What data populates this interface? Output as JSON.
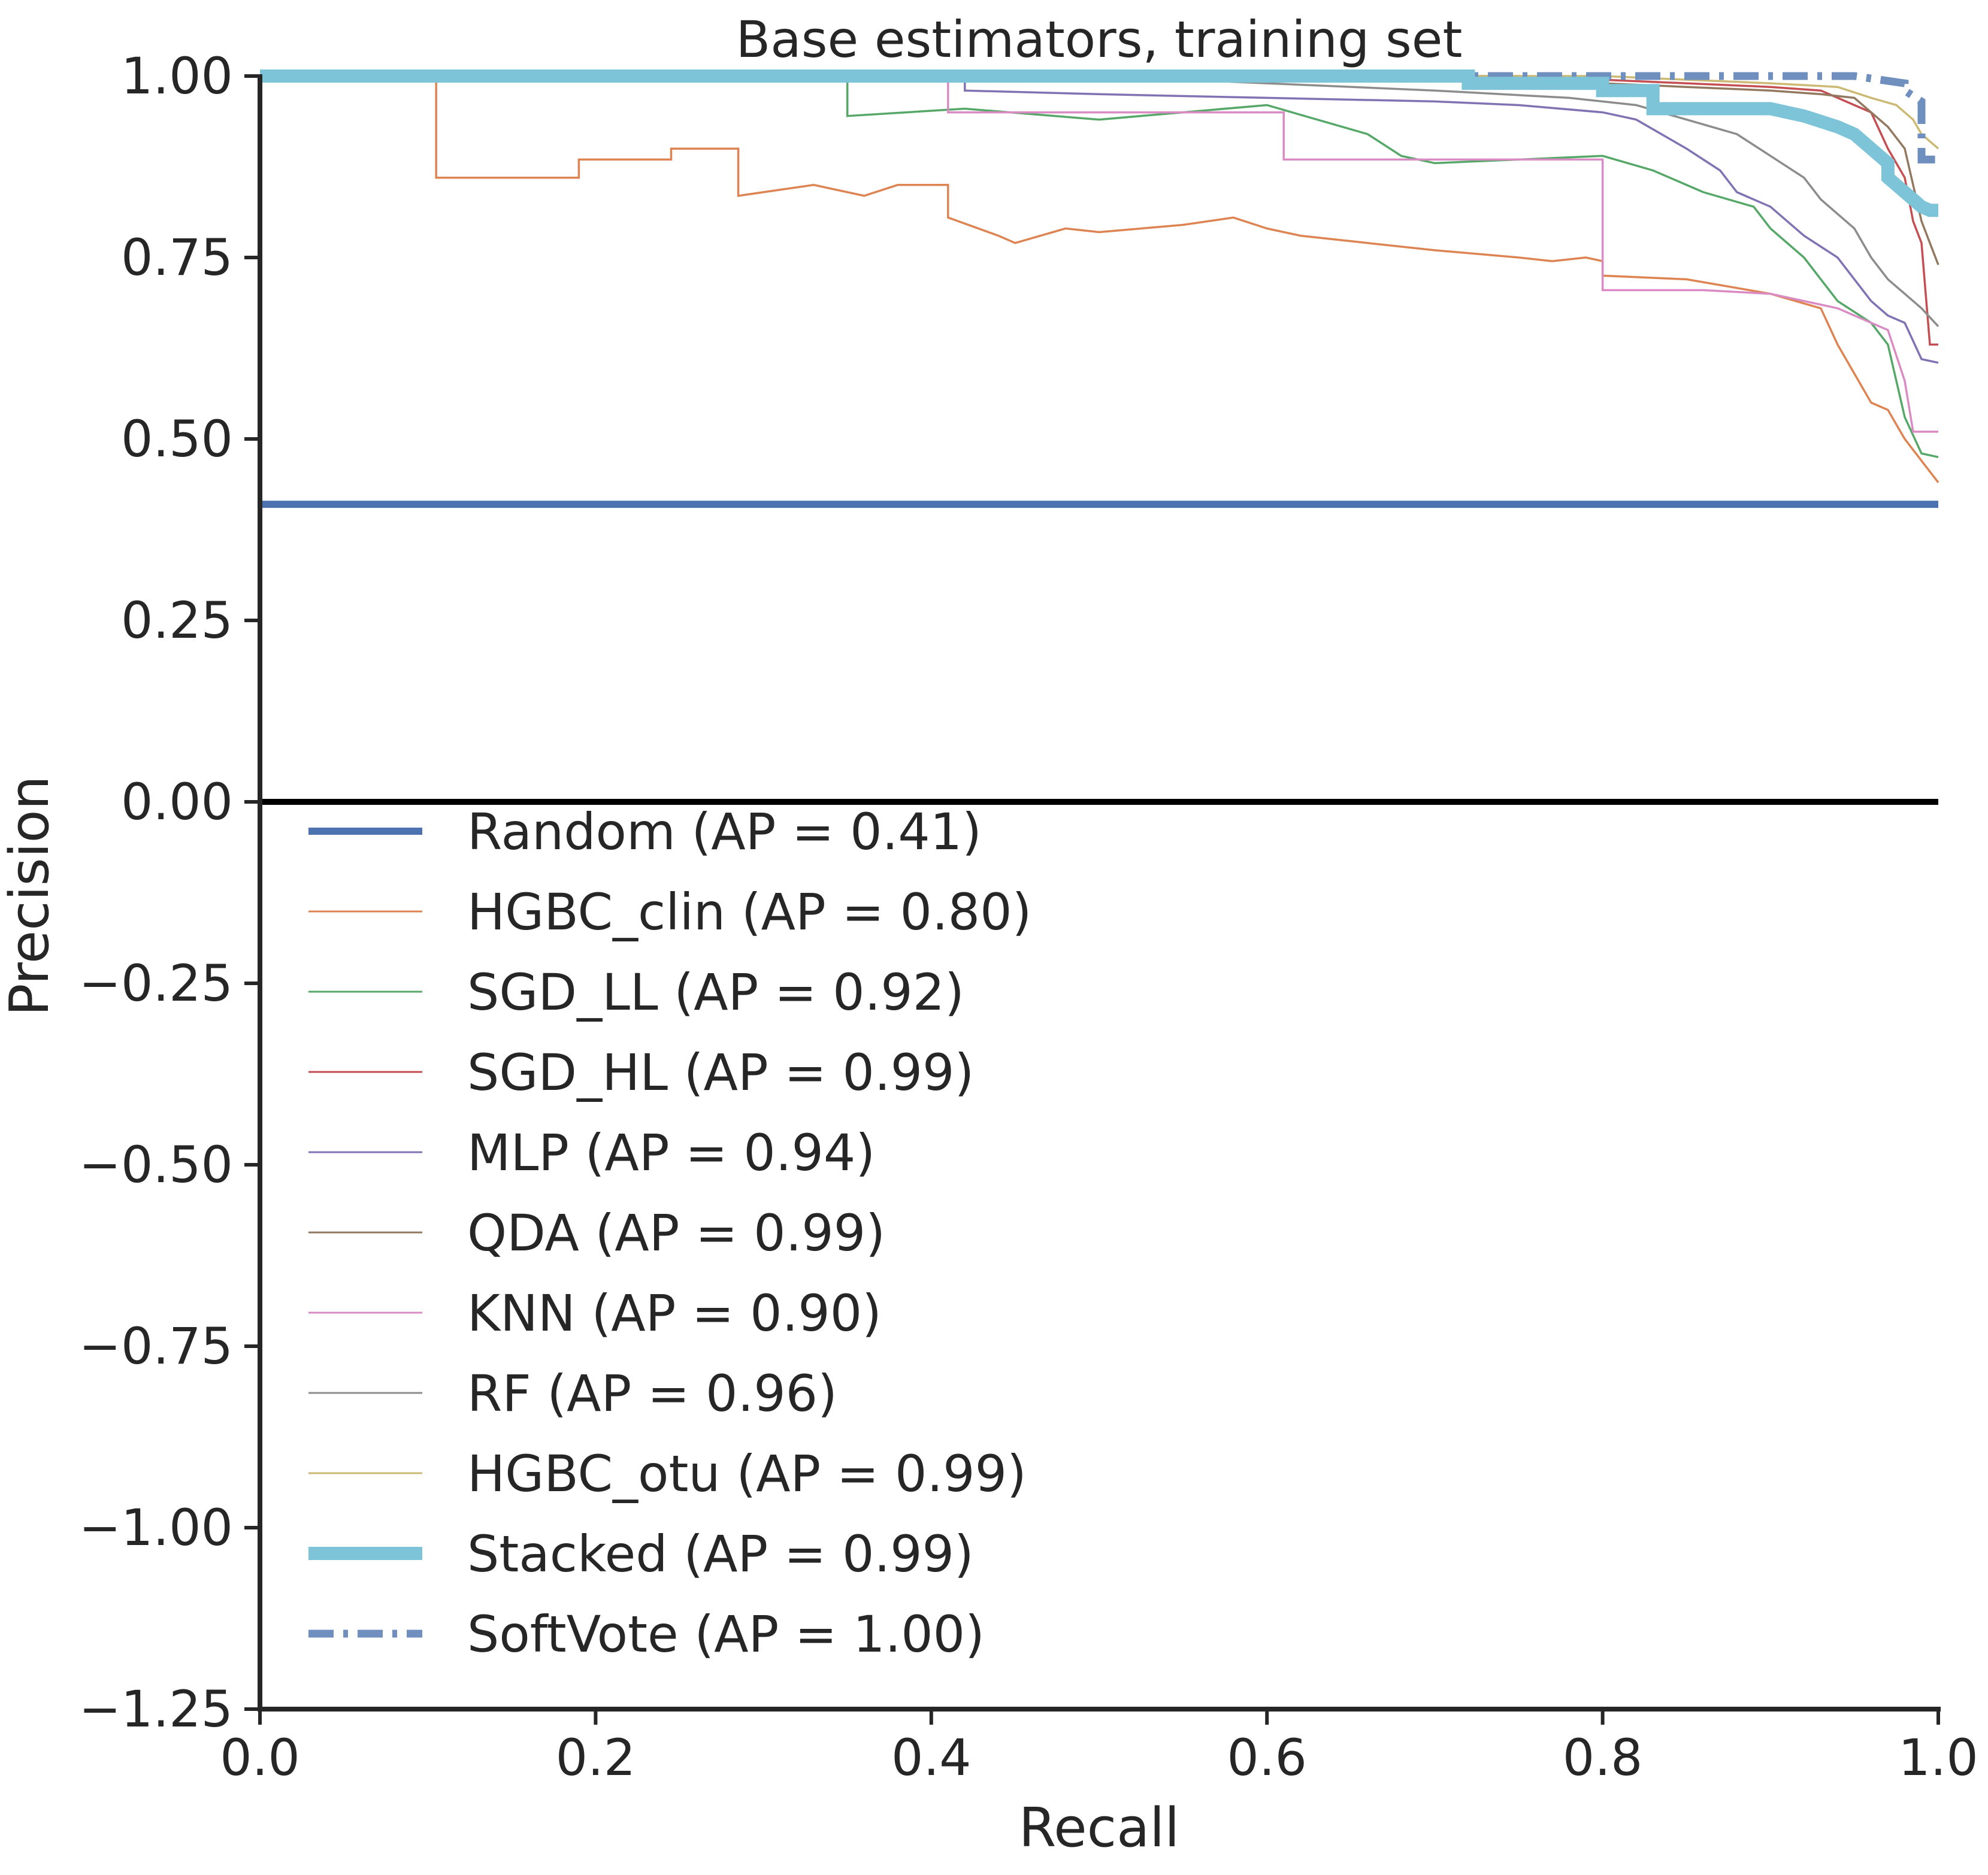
{
  "chart_data": {
    "type": "line",
    "title": "Base estimators, training set",
    "xlabel": "Recall",
    "ylabel": "Precision",
    "xlim": [
      0.0,
      1.0
    ],
    "ylim": [
      -1.25,
      1.0
    ],
    "xticks": [
      "0.0",
      "0.2",
      "0.4",
      "0.6",
      "0.8",
      "1.0"
    ],
    "yticks": [
      "1.00",
      "0.75",
      "0.50",
      "0.25",
      "0.00",
      "−0.25",
      "−0.50",
      "−0.75",
      "−1.00",
      "−1.25"
    ],
    "grid": false,
    "legend_position": "inside, below the 0.00 line, left",
    "series": [
      {
        "name": "Random (AP = 0.41)",
        "color": "#4c72b0",
        "style": "solid-thick",
        "x": [
          0.0,
          1.0
        ],
        "y": [
          0.41,
          0.41
        ]
      },
      {
        "name": "HGBC_clin (AP = 0.80)",
        "color": "#dd8452",
        "style": "solid",
        "x": [
          0.0,
          0.105,
          0.105,
          0.19,
          0.19,
          0.245,
          0.245,
          0.285,
          0.285,
          0.3,
          0.33,
          0.36,
          0.38,
          0.41,
          0.41,
          0.44,
          0.45,
          0.48,
          0.5,
          0.55,
          0.58,
          0.6,
          0.62,
          0.66,
          0.7,
          0.75,
          0.77,
          0.79,
          0.8,
          0.8,
          0.85,
          0.9,
          0.93,
          0.94,
          0.96,
          0.97,
          0.98,
          0.99,
          1.0
        ],
        "y": [
          1.0,
          1.0,
          0.86,
          0.86,
          0.885,
          0.885,
          0.9,
          0.9,
          0.835,
          0.84,
          0.85,
          0.835,
          0.85,
          0.85,
          0.805,
          0.78,
          0.77,
          0.79,
          0.785,
          0.795,
          0.805,
          0.79,
          0.78,
          0.77,
          0.76,
          0.75,
          0.745,
          0.75,
          0.745,
          0.725,
          0.72,
          0.7,
          0.68,
          0.63,
          0.55,
          0.54,
          0.5,
          0.47,
          0.44
        ]
      },
      {
        "name": "SGD_LL (AP = 0.92)",
        "color": "#55a868",
        "style": "solid",
        "x": [
          0.0,
          0.35,
          0.35,
          0.42,
          0.5,
          0.55,
          0.6,
          0.66,
          0.68,
          0.7,
          0.75,
          0.8,
          0.83,
          0.86,
          0.89,
          0.9,
          0.92,
          0.93,
          0.94,
          0.96,
          0.97,
          0.98,
          0.99,
          1.0
        ],
        "y": [
          1.0,
          1.0,
          0.945,
          0.955,
          0.94,
          0.95,
          0.96,
          0.92,
          0.89,
          0.88,
          0.885,
          0.89,
          0.87,
          0.84,
          0.82,
          0.79,
          0.75,
          0.72,
          0.69,
          0.66,
          0.63,
          0.53,
          0.48,
          0.475
        ]
      },
      {
        "name": "SGD_HL (AP = 0.99)",
        "color": "#c44e52",
        "style": "solid",
        "x": [
          0.0,
          0.72,
          0.8,
          0.85,
          0.9,
          0.93,
          0.95,
          0.96,
          0.97,
          0.98,
          0.985,
          0.99,
          0.995,
          1.0
        ],
        "y": [
          1.0,
          1.0,
          0.995,
          0.99,
          0.985,
          0.98,
          0.96,
          0.95,
          0.9,
          0.86,
          0.8,
          0.77,
          0.63,
          0.63
        ]
      },
      {
        "name": "MLP (AP = 0.94)",
        "color": "#8172b3",
        "style": "solid",
        "x": [
          0.0,
          0.42,
          0.42,
          0.5,
          0.6,
          0.7,
          0.75,
          0.8,
          0.82,
          0.85,
          0.87,
          0.88,
          0.9,
          0.91,
          0.92,
          0.94,
          0.95,
          0.96,
          0.97,
          0.98,
          0.99,
          1.0
        ],
        "y": [
          1.0,
          1.0,
          0.98,
          0.975,
          0.97,
          0.965,
          0.96,
          0.95,
          0.94,
          0.9,
          0.87,
          0.84,
          0.82,
          0.8,
          0.78,
          0.75,
          0.72,
          0.69,
          0.67,
          0.66,
          0.61,
          0.605
        ]
      },
      {
        "name": "QDA (AP = 0.99)",
        "color": "#937860",
        "style": "solid",
        "x": [
          0.0,
          0.75,
          0.8,
          0.85,
          0.9,
          0.93,
          0.95,
          0.96,
          0.97,
          0.98,
          0.99,
          1.0
        ],
        "y": [
          1.0,
          1.0,
          0.99,
          0.985,
          0.98,
          0.975,
          0.97,
          0.95,
          0.93,
          0.9,
          0.8,
          0.74
        ]
      },
      {
        "name": "KNN (AP = 0.90)",
        "color": "#da8bc3",
        "style": "solid",
        "x": [
          0.0,
          0.41,
          0.41,
          0.5,
          0.6,
          0.61,
          0.61,
          0.65,
          0.8,
          0.8,
          0.86,
          0.9,
          0.94,
          0.97,
          0.98,
          0.985,
          1.0
        ],
        "y": [
          1.0,
          1.0,
          0.95,
          0.95,
          0.95,
          0.95,
          0.885,
          0.885,
          0.885,
          0.705,
          0.705,
          0.7,
          0.68,
          0.65,
          0.58,
          0.51,
          0.51
        ]
      },
      {
        "name": "RF (AP = 0.96)",
        "color": "#8c8c8c",
        "style": "solid",
        "x": [
          0.0,
          0.5,
          0.6,
          0.7,
          0.78,
          0.82,
          0.85,
          0.88,
          0.9,
          0.92,
          0.93,
          0.95,
          0.96,
          0.97,
          0.98,
          0.99,
          1.0
        ],
        "y": [
          1.0,
          1.0,
          0.99,
          0.98,
          0.97,
          0.96,
          0.94,
          0.92,
          0.89,
          0.86,
          0.83,
          0.79,
          0.75,
          0.72,
          0.7,
          0.68,
          0.655
        ]
      },
      {
        "name": "HGBC_otu (AP = 0.99)",
        "color": "#ccb974",
        "style": "solid",
        "x": [
          0.0,
          0.8,
          0.85,
          0.9,
          0.94,
          0.96,
          0.975,
          0.985,
          0.99,
          1.0
        ],
        "y": [
          1.0,
          1.0,
          0.995,
          0.99,
          0.985,
          0.97,
          0.96,
          0.94,
          0.92,
          0.9
        ]
      },
      {
        "name": "Stacked (AP = 0.99)",
        "color": "#7ec4d8",
        "style": "solid-extra-thick",
        "x": [
          0.0,
          0.72,
          0.72,
          0.8,
          0.8,
          0.83,
          0.83,
          0.9,
          0.92,
          0.94,
          0.95,
          0.96,
          0.97,
          0.97,
          0.98,
          0.985,
          0.99,
          0.995,
          1.0
        ],
        "y": [
          1.0,
          1.0,
          0.99,
          0.99,
          0.98,
          0.98,
          0.955,
          0.955,
          0.945,
          0.93,
          0.92,
          0.9,
          0.88,
          0.86,
          0.84,
          0.83,
          0.82,
          0.815,
          0.815
        ]
      },
      {
        "name": "SoftVote (AP = 1.00)",
        "color": "#6f8fbf",
        "style": "dashdot-thick",
        "x": [
          0.0,
          0.95,
          0.98,
          0.98,
          0.99,
          0.99,
          1.0
        ],
        "y": [
          1.0,
          1.0,
          0.99,
          0.98,
          0.965,
          0.885,
          0.885
        ]
      }
    ]
  }
}
